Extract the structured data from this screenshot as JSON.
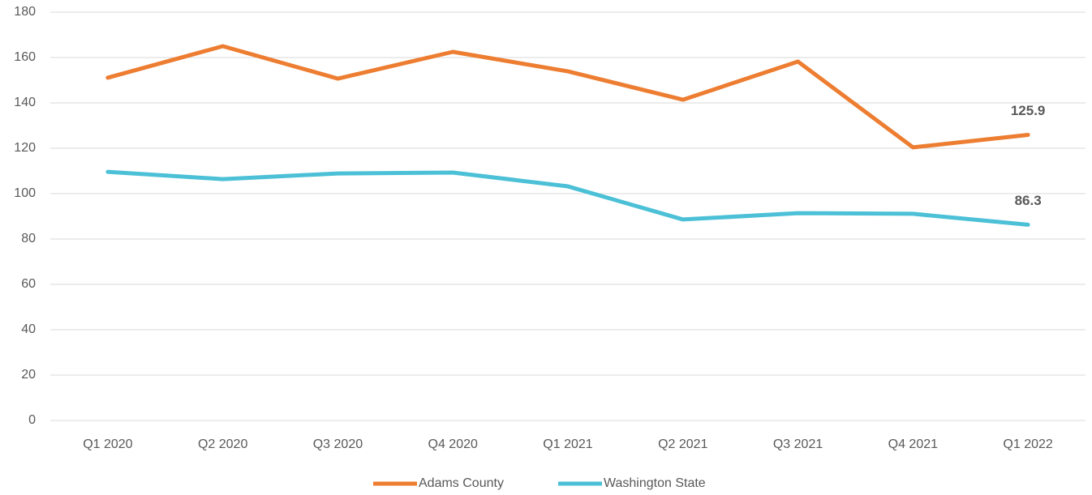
{
  "chart_data": {
    "type": "line",
    "categories": [
      "Q1 2020",
      "Q2 2020",
      "Q3 2020",
      "Q4 2020",
      "Q1 2021",
      "Q2 2021",
      "Q3 2021",
      "Q4 2021",
      "Q1 2022"
    ],
    "series": [
      {
        "name": "Adams County",
        "color": "#ed7d31",
        "values": [
          151.1,
          165,
          150.7,
          162.5,
          153.9,
          141.4,
          158.2,
          120.4,
          125.9
        ]
      },
      {
        "name": "Washington State",
        "color": "#4bc0d6",
        "values": [
          109.6,
          106.4,
          108.9,
          109.3,
          103.2,
          88.6,
          91.4,
          91.1,
          86.3
        ]
      }
    ],
    "ylim": [
      0,
      180
    ],
    "yticks": [
      0,
      20,
      40,
      60,
      80,
      100,
      120,
      140,
      160,
      180
    ],
    "grid": true,
    "legend": "bottom"
  }
}
